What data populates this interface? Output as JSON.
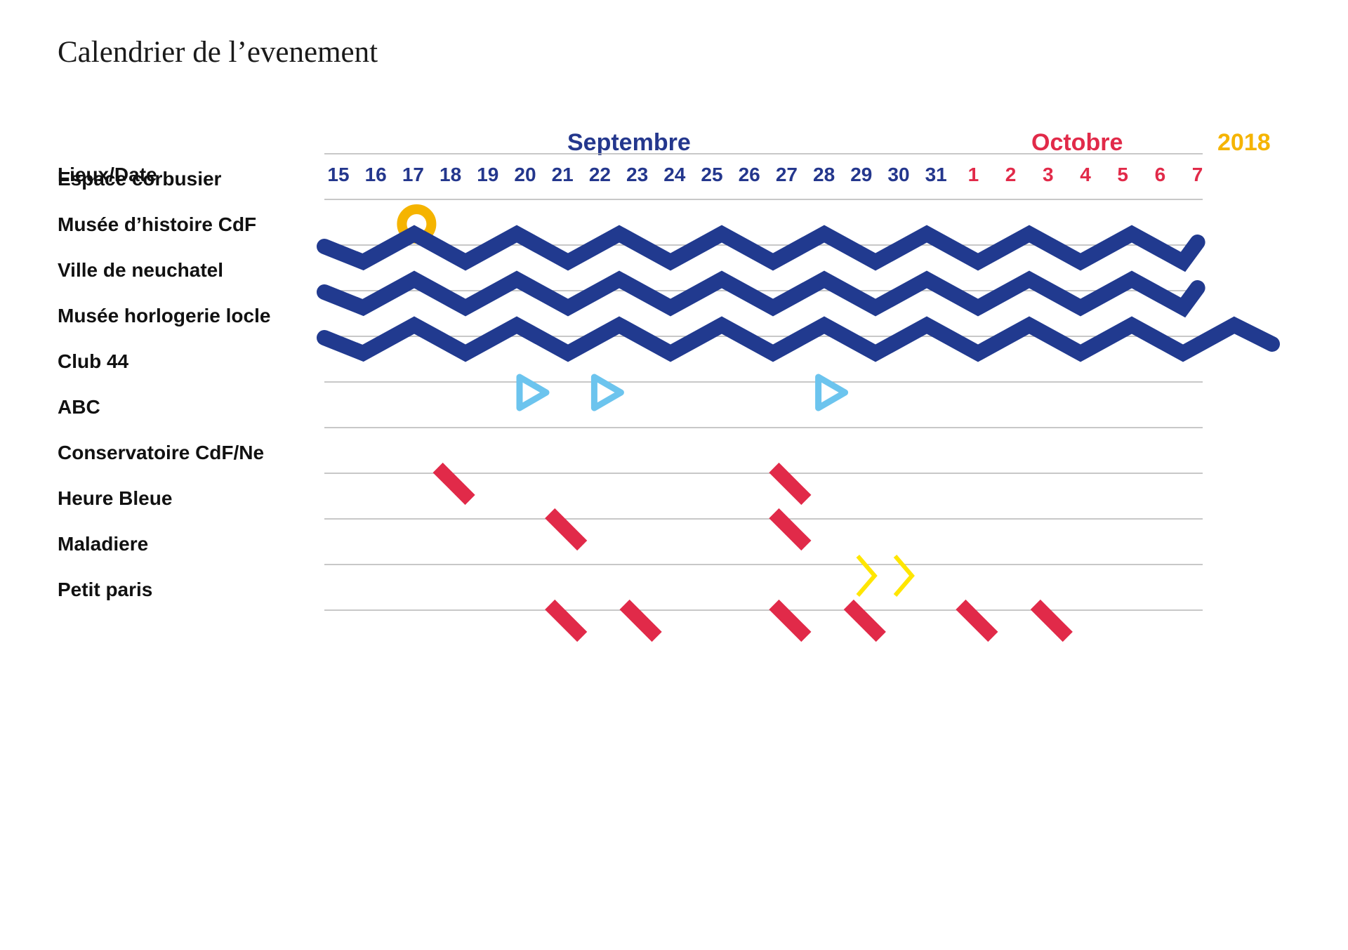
{
  "title": "Calendrier de l’evenement",
  "colors": {
    "september": "#24378d",
    "october": "#e12a49",
    "year": "#f5b400",
    "zigzag": "#213a8f",
    "circle": "#f5b400",
    "play": "#6cc4ee",
    "slash": "#e12a49",
    "chevron": "#ffe600",
    "gridline": "#b5b5b5"
  },
  "chart_data": {
    "type": "table",
    "header_label": "Lieux/Date",
    "months": [
      {
        "name": "Septembre",
        "days": [
          "15",
          "16",
          "17",
          "18",
          "19",
          "20",
          "21",
          "22",
          "23",
          "24",
          "25",
          "26",
          "27",
          "28",
          "29",
          "30",
          "31"
        ]
      },
      {
        "name": "Octobre",
        "days": [
          "1",
          "2",
          "3",
          "4",
          "5",
          "6",
          "7"
        ]
      }
    ],
    "year": "2018",
    "venues": [
      {
        "name": "Espace corbusier",
        "events": [
          {
            "marker": "circle",
            "days": [
              "17"
            ]
          }
        ]
      },
      {
        "name": "Musée d’histoire CdF",
        "events": [
          {
            "marker": "zigzag",
            "from": "15",
            "to": "7"
          }
        ]
      },
      {
        "name": "Ville de neuchatel",
        "events": [
          {
            "marker": "zigzag",
            "from": "15",
            "to": "7"
          }
        ]
      },
      {
        "name": "Musée horlogerie locle",
        "events": [
          {
            "marker": "zigzag",
            "from": "15",
            "to": "9"
          }
        ]
      },
      {
        "name": "Club 44",
        "events": [
          {
            "marker": "play",
            "days": [
              "20",
              "22",
              "28"
            ]
          }
        ]
      },
      {
        "name": "ABC",
        "events": []
      },
      {
        "name": "Conservatoire CdF/Ne",
        "events": [
          {
            "marker": "slash",
            "days": [
              "18",
              "27"
            ]
          }
        ]
      },
      {
        "name": "Heure Bleue",
        "events": [
          {
            "marker": "slash",
            "days": [
              "21",
              "27"
            ]
          }
        ]
      },
      {
        "name": "Maladiere",
        "events": [
          {
            "marker": "chevron",
            "days": [
              "29",
              "30"
            ]
          }
        ]
      },
      {
        "name": "Petit paris",
        "events": [
          {
            "marker": "slash",
            "days": [
              "21",
              "23",
              "27",
              "29",
              "1",
              "3"
            ]
          }
        ]
      }
    ]
  }
}
